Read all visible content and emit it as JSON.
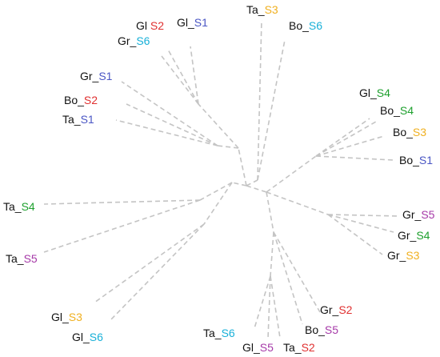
{
  "colors": {
    "prefix": "#111111",
    "edge": "#c4c4c4",
    "S1": "#4a56c4",
    "S2": "#e03030",
    "S3": "#f0b020",
    "S4": "#1ea02e",
    "S5": "#a63aa8",
    "S6": "#18b0d8"
  },
  "leaves": [
    {
      "id": "Gl_S2_top",
      "prefix": "Gl",
      "sep": "  ",
      "suffix": "S2",
      "group": "S2"
    },
    {
      "id": "Gl_S1_top",
      "prefix": "Gl_",
      "sep": "",
      "suffix": "S1",
      "group": "S1"
    },
    {
      "id": "Ta_S3",
      "prefix": "Ta_",
      "sep": "",
      "suffix": "S3",
      "group": "S3"
    },
    {
      "id": "Bo_S6",
      "prefix": "Bo_",
      "sep": "",
      "suffix": "S6",
      "group": "S6"
    },
    {
      "id": "Gr_S6",
      "prefix": "Gr_",
      "sep": "",
      "suffix": "S6",
      "group": "S6"
    },
    {
      "id": "Gr_S1",
      "prefix": "Gr_",
      "sep": "",
      "suffix": "S1",
      "group": "S1"
    },
    {
      "id": "Bo_S2",
      "prefix": "Bo_",
      "sep": "",
      "suffix": "S2",
      "group": "S2"
    },
    {
      "id": "Ta_S1",
      "prefix": "Ta_",
      "sep": "",
      "suffix": "S1",
      "group": "S1"
    },
    {
      "id": "Gl_S4",
      "prefix": "Gl_",
      "sep": "",
      "suffix": "S4",
      "group": "S4"
    },
    {
      "id": "Bo_S4",
      "prefix": "Bo_",
      "sep": "",
      "suffix": "S4",
      "group": "S4"
    },
    {
      "id": "Bo_S3",
      "prefix": "Bo_",
      "sep": "",
      "suffix": "S3",
      "group": "S3"
    },
    {
      "id": "Bo_S1",
      "prefix": "Bo_",
      "sep": "",
      "suffix": "S1",
      "group": "S1"
    },
    {
      "id": "Ta_S4",
      "prefix": "Ta_",
      "sep": "",
      "suffix": "S4",
      "group": "S4"
    },
    {
      "id": "Ta_S5",
      "prefix": "Ta_",
      "sep": "",
      "suffix": "S5",
      "group": "S5"
    },
    {
      "id": "Gr_S5",
      "prefix": "Gr_",
      "sep": "",
      "suffix": "S5",
      "group": "S5"
    },
    {
      "id": "Gr_S4",
      "prefix": "Gr_",
      "sep": "",
      "suffix": "S4",
      "group": "S4"
    },
    {
      "id": "Gr_S3",
      "prefix": "Gr_",
      "sep": "",
      "suffix": "S3",
      "group": "S3"
    },
    {
      "id": "Gl_S3",
      "prefix": "Gl_",
      "sep": "",
      "suffix": "S3",
      "group": "S3"
    },
    {
      "id": "Gl_S6",
      "prefix": "Gl_",
      "sep": "",
      "suffix": "S6",
      "group": "S6"
    },
    {
      "id": "Ta_S6",
      "prefix": "Ta_",
      "sep": "",
      "suffix": "S6",
      "group": "S6"
    },
    {
      "id": "Gl_S5",
      "prefix": "Gl_",
      "sep": "",
      "suffix": "S5",
      "group": "S5"
    },
    {
      "id": "Ta_S2",
      "prefix": "Ta_",
      "sep": "",
      "suffix": "S2",
      "group": "S2"
    },
    {
      "id": "Bo_S5",
      "prefix": "Bo_",
      "sep": "",
      "suffix": "S5",
      "group": "S5"
    },
    {
      "id": "Gr_S2",
      "prefix": "Gr_",
      "sep": "",
      "suffix": "S2",
      "group": "S2"
    }
  ]
}
